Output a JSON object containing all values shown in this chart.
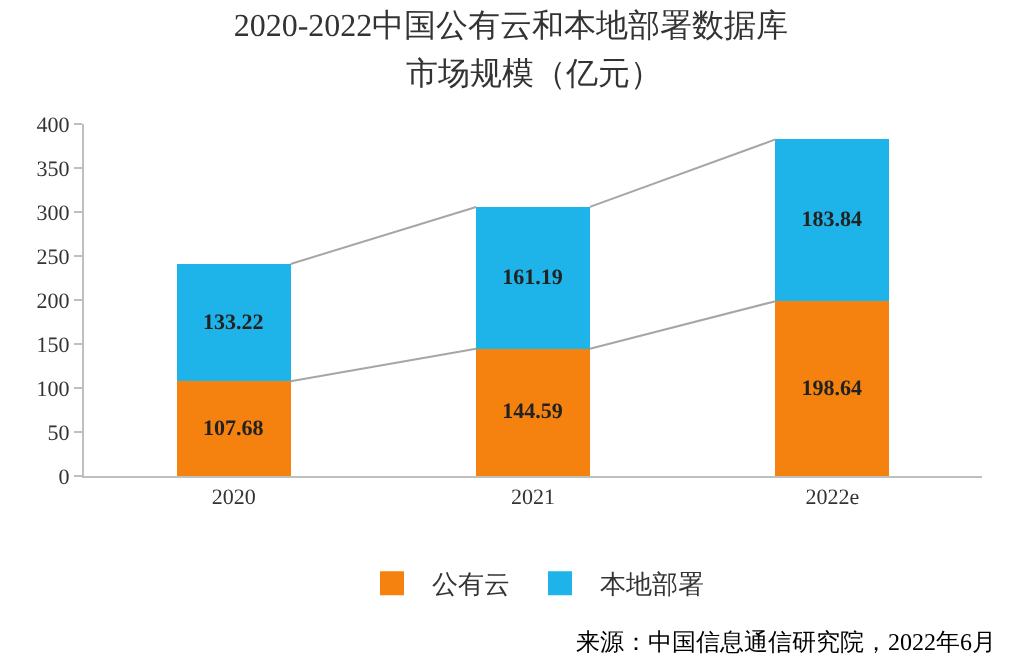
{
  "chart_data": {
    "type": "bar",
    "title": "2020-2022中国公有云和本地部署数据库",
    "subtitle": "市场规模（亿元）",
    "categories": [
      "2020",
      "2021",
      "2022e"
    ],
    "series": [
      {
        "name": "公有云",
        "color": "#f5820f",
        "values": [
          107.68,
          144.59,
          198.64
        ]
      },
      {
        "name": "本地部署",
        "color": "#1eb4ea",
        "values": [
          133.22,
          161.19,
          183.84
        ]
      }
    ],
    "stacked": true,
    "data_labels": true,
    "ylim": [
      0,
      400
    ],
    "yticks": [
      0,
      50,
      100,
      150,
      200,
      250,
      300,
      350,
      400
    ],
    "grid": false,
    "legend": "bottom",
    "annotations": [
      "来源：中国信息通信研究院，2022年6月"
    ]
  }
}
